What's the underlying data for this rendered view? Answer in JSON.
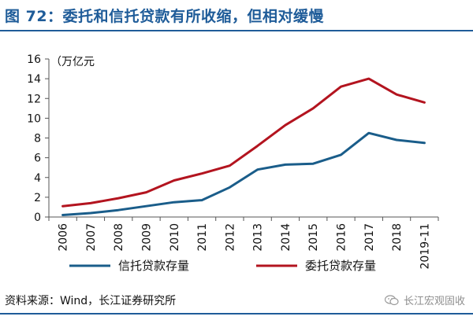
{
  "header": {
    "title": "图 72：委托和信托贷款有所收缩，但相对缓慢"
  },
  "footer": {
    "source": "资料来源：Wind，长江证券研究所",
    "watermark": "长江宏观固收"
  },
  "icons": {
    "watermark_icon": "wechat-icon"
  },
  "colors": {
    "title": "#1f5c99",
    "trust": "#1a5d8a",
    "entrusted": "#b3141f"
  },
  "chart_data": {
    "type": "line",
    "title": "图 72：委托和信托贷款有所收缩，但相对缓慢",
    "unit_label": "（万亿元",
    "categories": [
      "2006",
      "2007",
      "2008",
      "2009",
      "2010",
      "2011",
      "2012",
      "2013",
      "2014",
      "2015",
      "2016",
      "2017",
      "2018",
      "2019-11"
    ],
    "yticks": [
      "0",
      "2",
      "4",
      "6",
      "8",
      "10",
      "12",
      "14",
      "16"
    ],
    "ylim": [
      0,
      16
    ],
    "grid": false,
    "legend_position": "bottom",
    "series": [
      {
        "name": "信托贷款存量",
        "color": "#1a5d8a",
        "values": [
          0.2,
          0.4,
          0.7,
          1.1,
          1.5,
          1.7,
          3.0,
          4.8,
          5.3,
          5.4,
          6.3,
          8.5,
          7.8,
          7.5
        ]
      },
      {
        "name": "委托贷款存量",
        "color": "#b3141f",
        "values": [
          1.1,
          1.4,
          1.9,
          2.5,
          3.7,
          4.4,
          5.2,
          7.2,
          9.3,
          11.0,
          13.2,
          14.0,
          12.4,
          11.6
        ]
      }
    ]
  }
}
